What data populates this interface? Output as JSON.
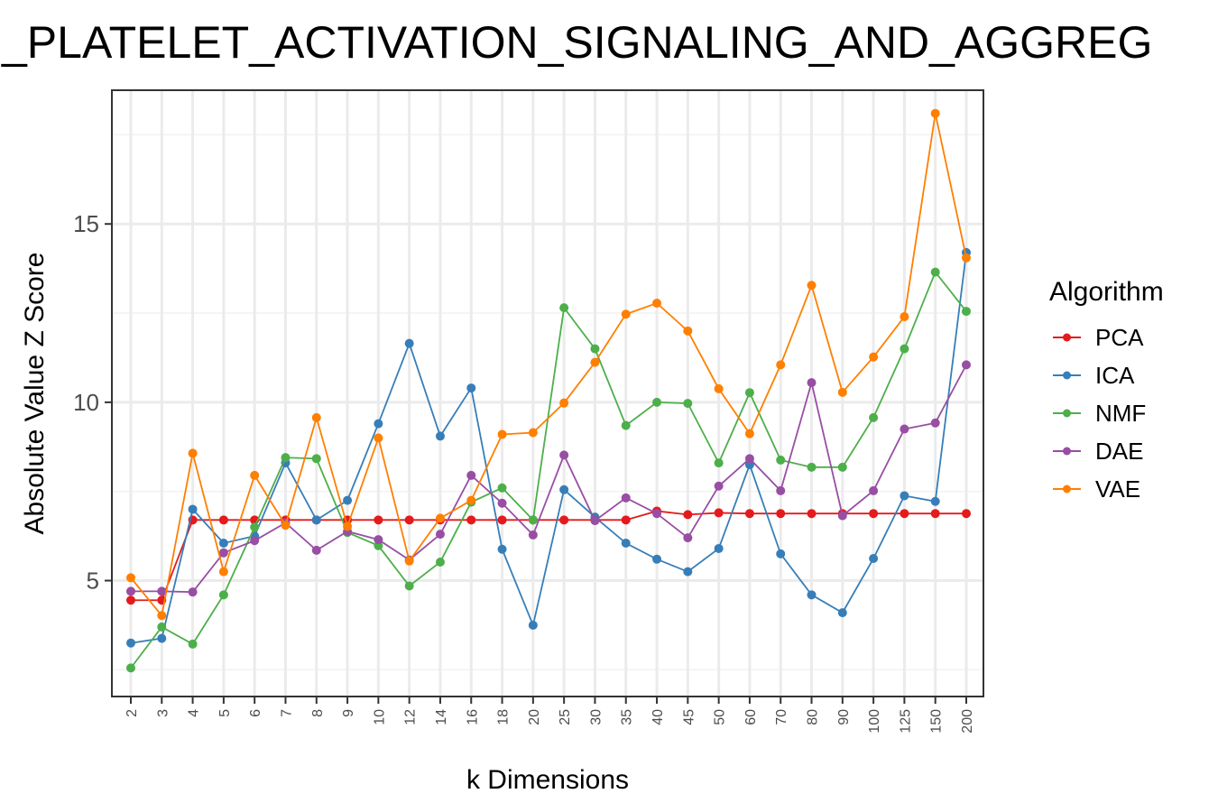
{
  "chart_data": {
    "type": "line",
    "title": "_PLATELET_ACTIVATION_SIGNALING_AND_AGGREG",
    "xlabel": "k Dimensions",
    "ylabel": "Absolute Value Z Score",
    "categories": [
      "2",
      "3",
      "4",
      "5",
      "6",
      "7",
      "8",
      "9",
      "10",
      "12",
      "14",
      "16",
      "18",
      "20",
      "25",
      "30",
      "35",
      "40",
      "45",
      "50",
      "60",
      "70",
      "80",
      "90",
      "100",
      "125",
      "150",
      "200"
    ],
    "ylim": [
      1.75,
      18.75
    ],
    "yticks": [
      5,
      10,
      15
    ],
    "grid": true,
    "legend_title": "Algorithm",
    "legend_position": "right",
    "series": [
      {
        "name": "PCA",
        "color": "#E41A1C",
        "values": [
          4.45,
          4.45,
          6.7,
          6.7,
          6.7,
          6.7,
          6.7,
          6.7,
          6.7,
          6.7,
          6.7,
          6.7,
          6.7,
          6.7,
          6.7,
          6.7,
          6.7,
          6.95,
          6.85,
          6.9,
          6.88,
          6.88,
          6.88,
          6.88,
          6.88,
          6.88,
          6.88,
          6.88
        ]
      },
      {
        "name": "ICA",
        "color": "#377EB8",
        "values": [
          3.25,
          3.38,
          7.0,
          6.05,
          6.25,
          8.3,
          6.7,
          7.25,
          9.4,
          11.65,
          9.05,
          10.4,
          5.88,
          3.75,
          7.55,
          6.78,
          6.05,
          5.6,
          5.25,
          5.9,
          8.25,
          5.75,
          4.6,
          4.1,
          5.62,
          7.38,
          7.22,
          14.2
        ]
      },
      {
        "name": "NMF",
        "color": "#4DAF4A",
        "values": [
          2.55,
          3.7,
          3.22,
          4.6,
          6.5,
          8.45,
          8.42,
          6.35,
          5.98,
          4.85,
          5.52,
          7.2,
          7.6,
          6.7,
          12.65,
          11.5,
          9.35,
          10.0,
          9.97,
          8.3,
          10.27,
          8.38,
          8.18,
          8.18,
          9.57,
          11.5,
          13.65,
          12.55
        ]
      },
      {
        "name": "DAE",
        "color": "#984EA3",
        "values": [
          4.7,
          4.7,
          4.68,
          5.78,
          6.12,
          6.62,
          5.85,
          6.38,
          6.15,
          5.58,
          6.3,
          7.95,
          7.17,
          6.28,
          8.52,
          6.68,
          7.32,
          6.88,
          6.2,
          7.65,
          8.42,
          7.52,
          10.55,
          6.82,
          7.52,
          9.25,
          9.42,
          11.05
        ]
      },
      {
        "name": "VAE",
        "color": "#FF7F00",
        "values": [
          5.08,
          4.02,
          8.57,
          5.25,
          7.95,
          6.55,
          9.57,
          6.52,
          9.0,
          5.55,
          6.75,
          7.25,
          9.1,
          9.15,
          9.98,
          11.12,
          12.47,
          12.78,
          12.0,
          10.38,
          9.12,
          11.05,
          13.28,
          10.28,
          11.27,
          12.4,
          18.1,
          14.05
        ]
      }
    ]
  }
}
